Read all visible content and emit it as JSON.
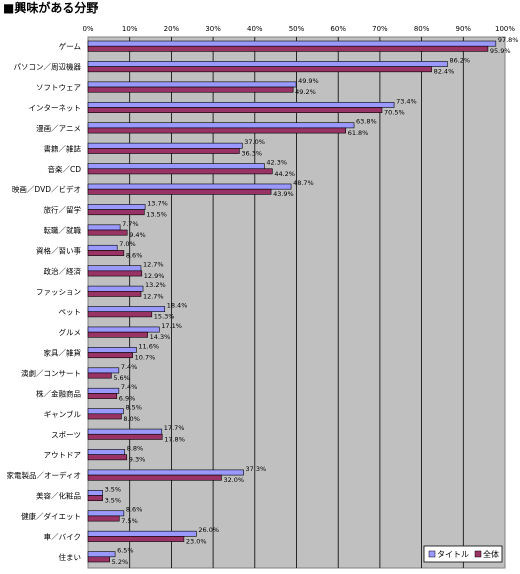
{
  "header": {
    "title": "■興味がある分野"
  },
  "chart_data": {
    "type": "bar",
    "orientation": "horizontal",
    "title": "",
    "xlabel": "",
    "ylabel": "",
    "xlim": [
      0,
      100
    ],
    "x_ticks": [
      "0%",
      "10%",
      "20%",
      "30%",
      "40%",
      "50%",
      "60%",
      "70%",
      "80%",
      "90%",
      "100%"
    ],
    "grid": true,
    "legend_position": "bottom-right",
    "categories": [
      "ゲーム",
      "パソコン／周辺機器",
      "ソフトウェア",
      "インターネット",
      "漫画／アニメ",
      "書籍／雑誌",
      "音楽／CD",
      "映画／DVD／ビデオ",
      "旅行／留学",
      "転職／就職",
      "資格／習い事",
      "政治／経済",
      "ファッション",
      "ペット",
      "グルメ",
      "家具／雑貨",
      "演劇／コンサート",
      "株／金融商品",
      "ギャンブル",
      "スポーツ",
      "アウトドア",
      "家電製品／オーディオ",
      "美容／化粧品",
      "健康／ダイエット",
      "車／バイク",
      "住まい"
    ],
    "series": [
      {
        "name": "タイトル",
        "color": "#9999ff",
        "values": [
          97.8,
          86.2,
          49.9,
          73.4,
          63.8,
          37.0,
          42.3,
          48.7,
          13.7,
          7.7,
          7.0,
          12.7,
          13.2,
          18.4,
          17.1,
          11.6,
          7.4,
          7.4,
          8.5,
          17.7,
          8.8,
          37.3,
          3.5,
          8.6,
          26.0,
          6.5
        ],
        "labels": [
          "97.8%",
          "86.2%",
          "49.9%",
          "73.4%",
          "63.8%",
          "37.0%",
          "42.3%",
          "48.7%",
          "13.7%",
          "7.7%",
          "7.0%",
          "12.7%",
          "13.2%",
          "18.4%",
          "17.1%",
          "11.6%",
          "7.4%",
          "7.4%",
          "8.5%",
          "17.7%",
          "8.8%",
          "37.3%",
          "3.5%",
          "8.6%",
          "26.0%",
          "6.5%"
        ]
      },
      {
        "name": "全体",
        "color": "#993366",
        "values": [
          95.9,
          82.4,
          49.2,
          70.5,
          61.8,
          36.3,
          44.2,
          43.9,
          13.5,
          9.4,
          8.6,
          12.9,
          12.7,
          15.3,
          14.3,
          10.7,
          5.6,
          6.9,
          8.0,
          17.8,
          9.3,
          32.0,
          3.5,
          7.5,
          23.0,
          5.2
        ],
        "labels": [
          "95.9%",
          "82.4%",
          "49.2%",
          "70.5%",
          "61.8%",
          "36.3%",
          "44.2%",
          "43.9%",
          "13.5%",
          "9.4%",
          "8.6%",
          "12.9%",
          "12.7%",
          "15.3%",
          "14.3%",
          "10.7%",
          "5.6%",
          "6.9%",
          "8.0%",
          "17.8%",
          "9.3%",
          "32.0%",
          "3.5%",
          "7.5%",
          "23.0%",
          "5.2%"
        ]
      }
    ]
  }
}
